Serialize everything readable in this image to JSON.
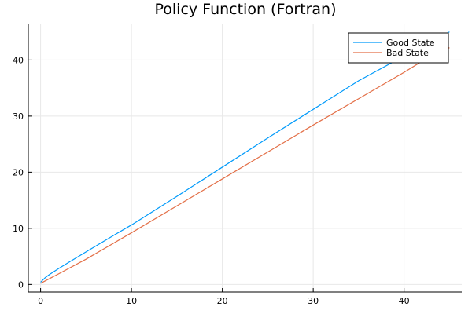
{
  "chart_data": {
    "type": "line",
    "title": "Policy Function (Fortran)",
    "xlabel": "",
    "ylabel": "",
    "xlim": [
      -1.35,
      46.35
    ],
    "ylim": [
      -1.35,
      46.35
    ],
    "xticks": [
      0,
      10,
      20,
      30,
      40
    ],
    "yticks": [
      0,
      10,
      20,
      30,
      40
    ],
    "tick_labels": {
      "x": [
        "0",
        "10",
        "20",
        "30",
        "40"
      ],
      "y": [
        "0",
        "10",
        "20",
        "30",
        "40"
      ]
    },
    "grid": true,
    "legend": {
      "position": "top-right"
    },
    "series": [
      {
        "name": "Good State",
        "color": "#009AFA",
        "x": [
          0,
          0.5,
          1,
          2,
          3,
          5,
          8,
          10,
          15,
          20,
          25,
          30,
          35,
          40,
          45
        ],
        "y": [
          0.4,
          1.2,
          1.8,
          2.85,
          3.85,
          5.8,
          8.7,
          10.6,
          15.7,
          20.9,
          26.1,
          31.2,
          36.3,
          40.7,
          45
        ]
      },
      {
        "name": "Bad State",
        "color": "#E36F47",
        "x": [
          0,
          1,
          2,
          5,
          10,
          15,
          20,
          25,
          30,
          35,
          40,
          43,
          45
        ],
        "y": [
          0.2,
          1.05,
          1.9,
          4.5,
          9.2,
          14,
          18.8,
          23.6,
          28.4,
          33.1,
          37.8,
          40.8,
          42.2
        ]
      }
    ]
  }
}
